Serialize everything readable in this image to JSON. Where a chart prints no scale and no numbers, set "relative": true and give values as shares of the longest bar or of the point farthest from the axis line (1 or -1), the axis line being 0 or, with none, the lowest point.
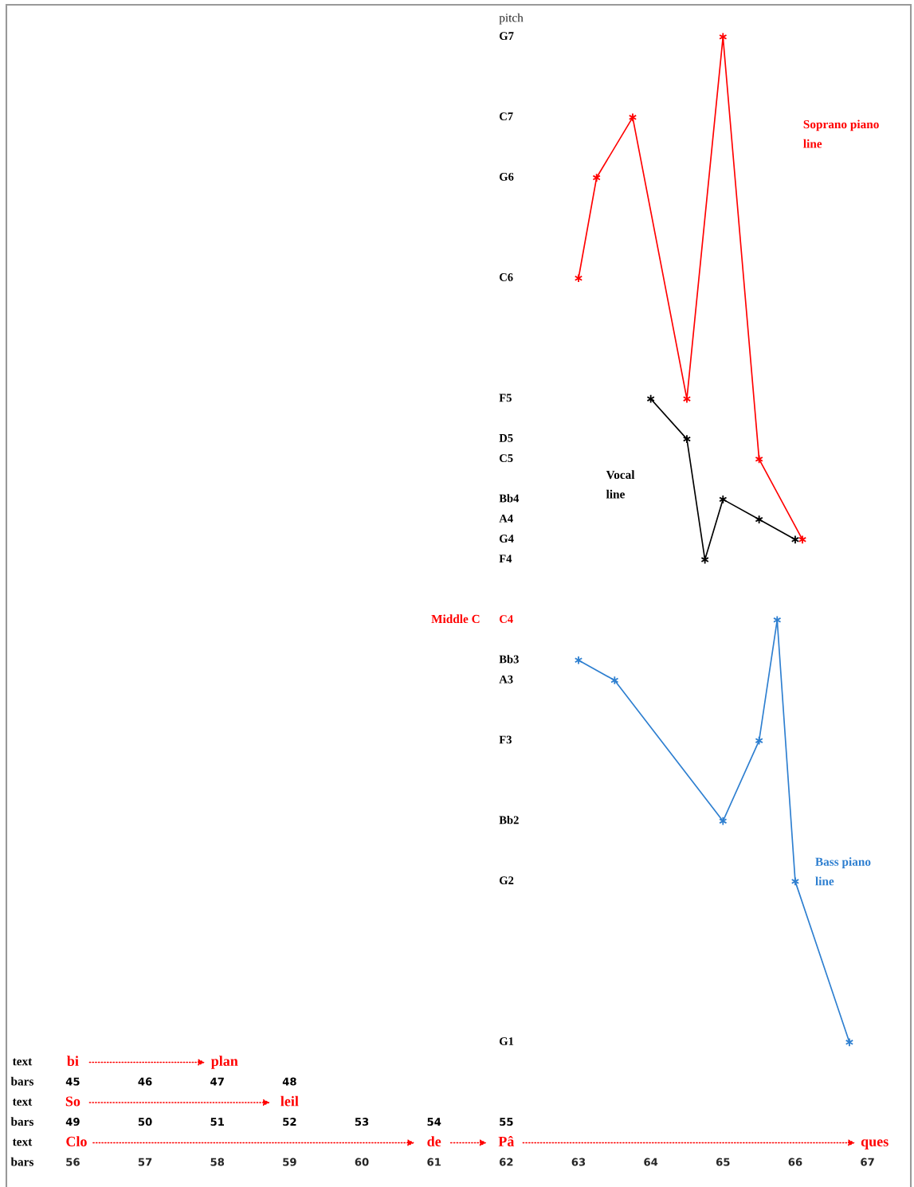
{
  "chart_data": {
    "type": "line",
    "relative": true,
    "ylabel": "pitch",
    "marker": "cross",
    "line_style": "solid",
    "grid": false,
    "legend": false,
    "xlim": [
      55.08,
      67.6
    ],
    "xticks": [
      56,
      57,
      58,
      59,
      60,
      61,
      62,
      63,
      64,
      65,
      66,
      67
    ],
    "series": [
      {
        "name": "Soprano piano line",
        "color": "#ff0000",
        "x": [
          63,
          63.25,
          63.75,
          64.5,
          65,
          65.5,
          66.1
        ],
        "values": [
          0.76,
          0.86,
          0.92,
          0.64,
          1,
          0.58,
          0.5
        ]
      },
      {
        "name": "Vocal line",
        "color": "#000000",
        "x": [
          64,
          64.5,
          64.75,
          65,
          65.5,
          66
        ],
        "values": [
          0.64,
          0.6,
          0.48,
          0.54,
          0.52,
          0.5
        ]
      },
      {
        "name": "Bass piano line",
        "color": "#2e7fd0",
        "x": [
          63,
          63.5,
          65,
          65.5,
          65.75,
          66,
          66.75
        ],
        "values": [
          0.38,
          0.36,
          0.22,
          0.3,
          0.42,
          0.16,
          0
        ]
      }
    ],
    "annotations": [
      "G7",
      "C7",
      "G6",
      "C6",
      "F5",
      "D5",
      "C5",
      "Bb4",
      "A4",
      "G4",
      "F4",
      "C4",
      "Bb3",
      "A3",
      "F3",
      "Bb2",
      "G2",
      "G1",
      "Middle C",
      "text",
      "bi",
      "plan",
      "bars",
      "45",
      "46",
      "47",
      "48",
      "text",
      "So",
      "leil",
      "bars",
      "49",
      "50",
      "51",
      "52",
      "53",
      "54",
      "55",
      "text",
      "Clo",
      "de",
      "Pâ",
      "ques",
      "bars"
    ]
  }
}
